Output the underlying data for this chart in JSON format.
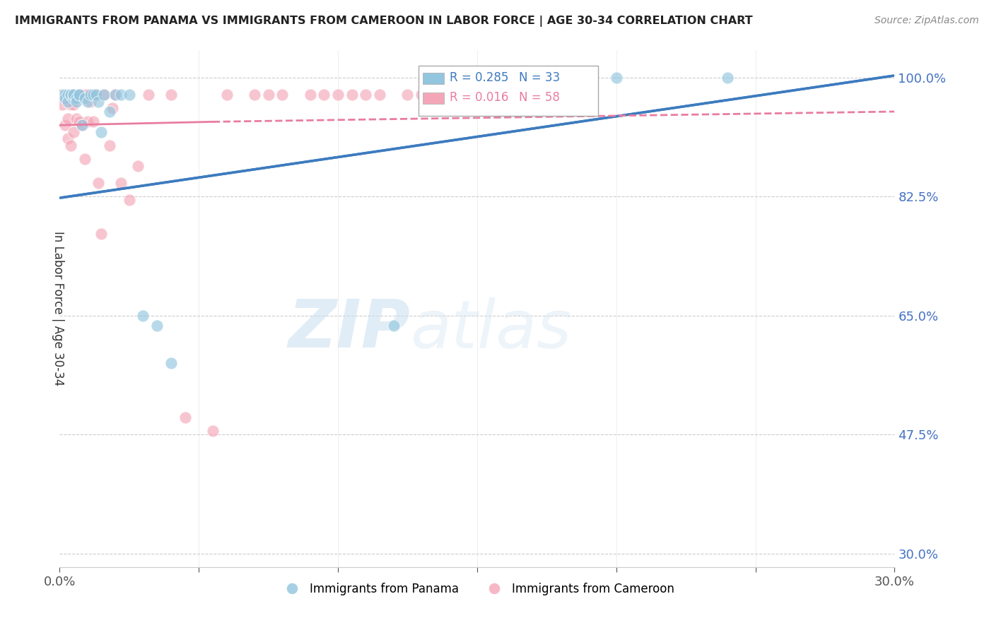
{
  "title": "IMMIGRANTS FROM PANAMA VS IMMIGRANTS FROM CAMEROON IN LABOR FORCE | AGE 30-34 CORRELATION CHART",
  "source": "Source: ZipAtlas.com",
  "ylabel": "In Labor Force | Age 30-34",
  "xlim": [
    0.0,
    0.3
  ],
  "ylim": [
    0.28,
    1.04
  ],
  "yticks": [
    0.3,
    0.475,
    0.65,
    0.825,
    1.0
  ],
  "xticks": [
    0.0,
    0.05,
    0.1,
    0.15,
    0.2,
    0.25,
    0.3
  ],
  "blue_color": "#92c5de",
  "pink_color": "#f4a6b8",
  "trend_blue": "#3d7bbf",
  "trend_pink": "#e87da0",
  "watermark_zip": "ZIP",
  "watermark_atlas": "atlas",
  "panama_x": [
    0.001,
    0.002,
    0.002,
    0.003,
    0.003,
    0.004,
    0.004,
    0.005,
    0.005,
    0.005,
    0.006,
    0.006,
    0.007,
    0.007,
    0.008,
    0.009,
    0.01,
    0.011,
    0.012,
    0.013,
    0.014,
    0.015,
    0.016,
    0.018,
    0.02,
    0.022,
    0.025,
    0.03,
    0.035,
    0.04,
    0.12,
    0.2,
    0.24
  ],
  "panama_y": [
    0.975,
    0.975,
    0.97,
    0.975,
    0.965,
    0.975,
    0.975,
    0.97,
    0.975,
    0.975,
    0.97,
    0.965,
    0.975,
    0.975,
    0.93,
    0.97,
    0.965,
    0.975,
    0.975,
    0.975,
    0.965,
    0.92,
    0.975,
    0.95,
    0.975,
    0.975,
    0.975,
    0.65,
    0.635,
    0.58,
    0.635,
    1.0,
    1.0
  ],
  "cameroon_x": [
    0.001,
    0.001,
    0.002,
    0.002,
    0.003,
    0.003,
    0.003,
    0.003,
    0.004,
    0.004,
    0.004,
    0.005,
    0.005,
    0.005,
    0.006,
    0.006,
    0.007,
    0.007,
    0.008,
    0.008,
    0.009,
    0.009,
    0.01,
    0.01,
    0.011,
    0.012,
    0.013,
    0.014,
    0.015,
    0.016,
    0.018,
    0.019,
    0.02,
    0.022,
    0.025,
    0.028,
    0.032,
    0.04,
    0.045,
    0.055,
    0.06,
    0.07,
    0.075,
    0.08,
    0.09,
    0.095,
    0.1,
    0.105,
    0.11,
    0.115,
    0.125,
    0.13,
    0.14,
    0.15,
    0.16,
    0.17,
    0.18,
    0.19
  ],
  "cameroon_y": [
    0.975,
    0.96,
    0.975,
    0.93,
    0.975,
    0.965,
    0.94,
    0.91,
    0.975,
    0.96,
    0.9,
    0.975,
    0.96,
    0.92,
    0.975,
    0.94,
    0.975,
    0.935,
    0.975,
    0.93,
    0.975,
    0.88,
    0.975,
    0.935,
    0.965,
    0.935,
    0.975,
    0.845,
    0.77,
    0.975,
    0.9,
    0.955,
    0.975,
    0.845,
    0.82,
    0.87,
    0.975,
    0.975,
    0.5,
    0.48,
    0.975,
    0.975,
    0.975,
    0.975,
    0.975,
    0.975,
    0.975,
    0.975,
    0.975,
    0.975,
    0.975,
    0.975,
    0.975,
    0.975,
    0.975,
    0.975,
    0.975,
    0.975
  ],
  "trend_blue_x0": 0.0,
  "trend_blue_y0": 0.823,
  "trend_blue_x1": 0.3,
  "trend_blue_y1": 1.003,
  "trend_pink_solid_x0": 0.0,
  "trend_pink_solid_y0": 0.93,
  "trend_pink_solid_x1": 0.055,
  "trend_pink_solid_y1": 0.935,
  "trend_pink_dash_x0": 0.055,
  "trend_pink_dash_y0": 0.935,
  "trend_pink_dash_x1": 0.3,
  "trend_pink_dash_y1": 0.95
}
